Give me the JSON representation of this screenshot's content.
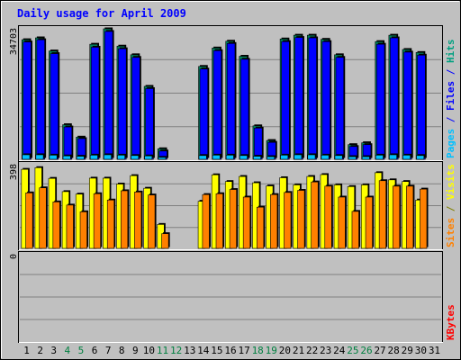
{
  "chart_data": {
    "type": "bar",
    "title": "Daily usage for April 2009",
    "days": [
      "1",
      "2",
      "3",
      "4",
      "5",
      "6",
      "7",
      "8",
      "9",
      "10",
      "11",
      "12",
      "13",
      "14",
      "15",
      "16",
      "17",
      "18",
      "19",
      "20",
      "21",
      "22",
      "23",
      "24",
      "25",
      "26",
      "27",
      "28",
      "29",
      "30",
      "31"
    ],
    "weekend_days": [
      "4",
      "5",
      "11",
      "12",
      "18",
      "19",
      "25",
      "26"
    ],
    "panels": [
      {
        "id": "hits",
        "max_label": "34703",
        "ylim": [
          0,
          34703
        ],
        "ylabel_parts": [
          {
            "text": "Pages",
            "color": "#00c0ff"
          },
          {
            "text": " / ",
            "color": "#0000ff"
          },
          {
            "text": "Files",
            "color": "#0000ff"
          },
          {
            "text": " / ",
            "color": "#0000ff"
          },
          {
            "text": "Hits",
            "color": "#00a080"
          }
        ],
        "series": [
          {
            "name": "Hits",
            "color": "#00805c",
            "values": [
              31800,
              32300,
              28800,
              9200,
              5900,
              30600,
              34703,
              30100,
              27800,
              19400,
              2800,
              0,
              0,
              24700,
              29600,
              31400,
              27400,
              8900,
              5000,
              32000,
              33000,
              33000,
              31900,
              27800,
              3900,
              4400,
              31300,
              33000,
              29200,
              28400,
              0
            ]
          },
          {
            "name": "Files",
            "color": "#0000ff",
            "values": [
              31200,
              31800,
              28100,
              8600,
              5500,
              29800,
              34000,
              29400,
              27100,
              18800,
              2200,
              0,
              0,
              24000,
              28900,
              30800,
              26600,
              8300,
              4500,
              31300,
              32400,
              32300,
              31300,
              27100,
              3400,
              3900,
              30600,
              32300,
              28500,
              27700,
              0
            ]
          },
          {
            "name": "Pages",
            "color": "#00c0ff",
            "values": [
              1200,
              1200,
              1100,
              900,
              800,
              1100,
              1200,
              1100,
              1000,
              900,
              500,
              0,
              0,
              1000,
              1100,
              1100,
              1000,
              800,
              700,
              1100,
              1200,
              1200,
              1100,
              1000,
              700,
              700,
              1100,
              1200,
              1100,
              1000,
              0
            ]
          }
        ]
      },
      {
        "id": "visits",
        "max_label": "398",
        "ylim": [
          0,
          398
        ],
        "ylabel_parts": [
          {
            "text": "Sites",
            "color": "#ff8000"
          },
          {
            "text": " / ",
            "color": "#808000"
          },
          {
            "text": "Visits",
            "color": "#ffff00"
          }
        ],
        "series": [
          {
            "name": "Visits",
            "color": "#ffff00",
            "values": [
              376,
              384,
              333,
              270,
              258,
              334,
              334,
              306,
              346,
              286,
              114,
              0,
              0,
              224,
              350,
              318,
              342,
              312,
              297,
              336,
              302,
              342,
              351,
              302,
              294,
              302,
              360,
              326,
              318,
              230,
              0
            ]
          },
          {
            "name": "Sites",
            "color": "#ff8000",
            "values": [
              264,
              288,
              221,
              206,
              174,
              260,
              230,
              274,
              268,
              254,
              70,
              0,
              0,
              256,
              260,
              280,
              244,
              196,
              256,
              266,
              276,
              316,
              296,
              244,
              176,
              244,
              322,
              296,
              296,
              282,
              0
            ]
          }
        ]
      },
      {
        "id": "kbytes",
        "max_label": "0",
        "ylim": [
          0,
          1
        ],
        "ylabel_parts": [
          {
            "text": "KBytes",
            "color": "#ff0000"
          }
        ],
        "series": []
      }
    ]
  }
}
